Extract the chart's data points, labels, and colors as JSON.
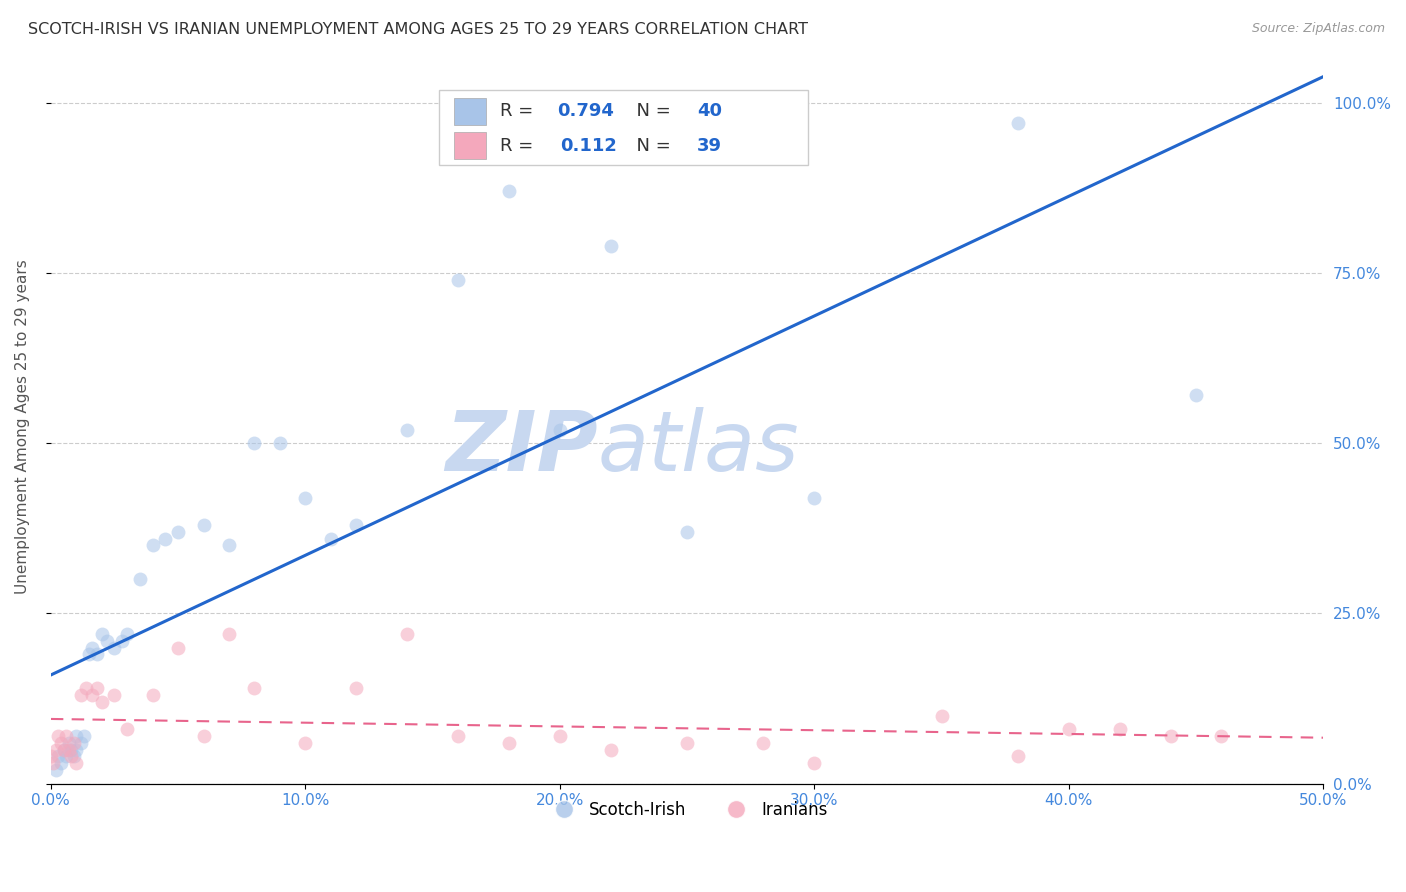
{
  "title": "SCOTCH-IRISH VS IRANIAN UNEMPLOYMENT AMONG AGES 25 TO 29 YEARS CORRELATION CHART",
  "source": "Source: ZipAtlas.com",
  "ylabel": "Unemployment Among Ages 25 to 29 years",
  "xlim": [
    0,
    0.5
  ],
  "ylim": [
    0,
    1.05
  ],
  "scotch_irish_R": 0.794,
  "scotch_irish_N": 40,
  "iranians_R": 0.112,
  "iranians_N": 39,
  "scotch_irish_color": "#a8c4e8",
  "iranians_color": "#f4a8bc",
  "trend_scotch_color": "#2266cc",
  "trend_iranian_color": "#e8648c",
  "watermark_color": "#d0e0f4",
  "scotch_irish_x": [
    0.002,
    0.003,
    0.004,
    0.005,
    0.006,
    0.007,
    0.008,
    0.009,
    0.01,
    0.01,
    0.012,
    0.013,
    0.015,
    0.016,
    0.018,
    0.02,
    0.022,
    0.025,
    0.028,
    0.03,
    0.035,
    0.04,
    0.045,
    0.05,
    0.06,
    0.07,
    0.08,
    0.09,
    0.1,
    0.11,
    0.12,
    0.14,
    0.16,
    0.18,
    0.2,
    0.22,
    0.25,
    0.3,
    0.38,
    0.45
  ],
  "scotch_irish_y": [
    0.02,
    0.04,
    0.03,
    0.05,
    0.04,
    0.06,
    0.05,
    0.04,
    0.07,
    0.05,
    0.06,
    0.07,
    0.19,
    0.2,
    0.19,
    0.22,
    0.21,
    0.2,
    0.21,
    0.22,
    0.3,
    0.35,
    0.36,
    0.37,
    0.38,
    0.35,
    0.5,
    0.5,
    0.42,
    0.36,
    0.38,
    0.52,
    0.74,
    0.87,
    0.52,
    0.79,
    0.37,
    0.42,
    0.97,
    0.57
  ],
  "iranians_x": [
    0.0,
    0.001,
    0.002,
    0.003,
    0.004,
    0.005,
    0.006,
    0.007,
    0.008,
    0.009,
    0.01,
    0.012,
    0.014,
    0.016,
    0.018,
    0.02,
    0.025,
    0.03,
    0.04,
    0.05,
    0.06,
    0.07,
    0.08,
    0.1,
    0.12,
    0.14,
    0.16,
    0.18,
    0.2,
    0.22,
    0.25,
    0.28,
    0.3,
    0.35,
    0.38,
    0.4,
    0.42,
    0.44,
    0.46
  ],
  "iranians_y": [
    0.04,
    0.03,
    0.05,
    0.07,
    0.06,
    0.05,
    0.07,
    0.05,
    0.04,
    0.06,
    0.03,
    0.13,
    0.14,
    0.13,
    0.14,
    0.12,
    0.13,
    0.08,
    0.13,
    0.2,
    0.07,
    0.22,
    0.14,
    0.06,
    0.14,
    0.22,
    0.07,
    0.06,
    0.07,
    0.05,
    0.06,
    0.06,
    0.03,
    0.1,
    0.04,
    0.08,
    0.08,
    0.07,
    0.07
  ],
  "marker_size": 100,
  "alpha": 0.55,
  "grid_color": "#cccccc",
  "background_color": "#ffffff",
  "legend_scotch_label": "Scotch-Irish",
  "legend_iranians_label": "Iranians"
}
